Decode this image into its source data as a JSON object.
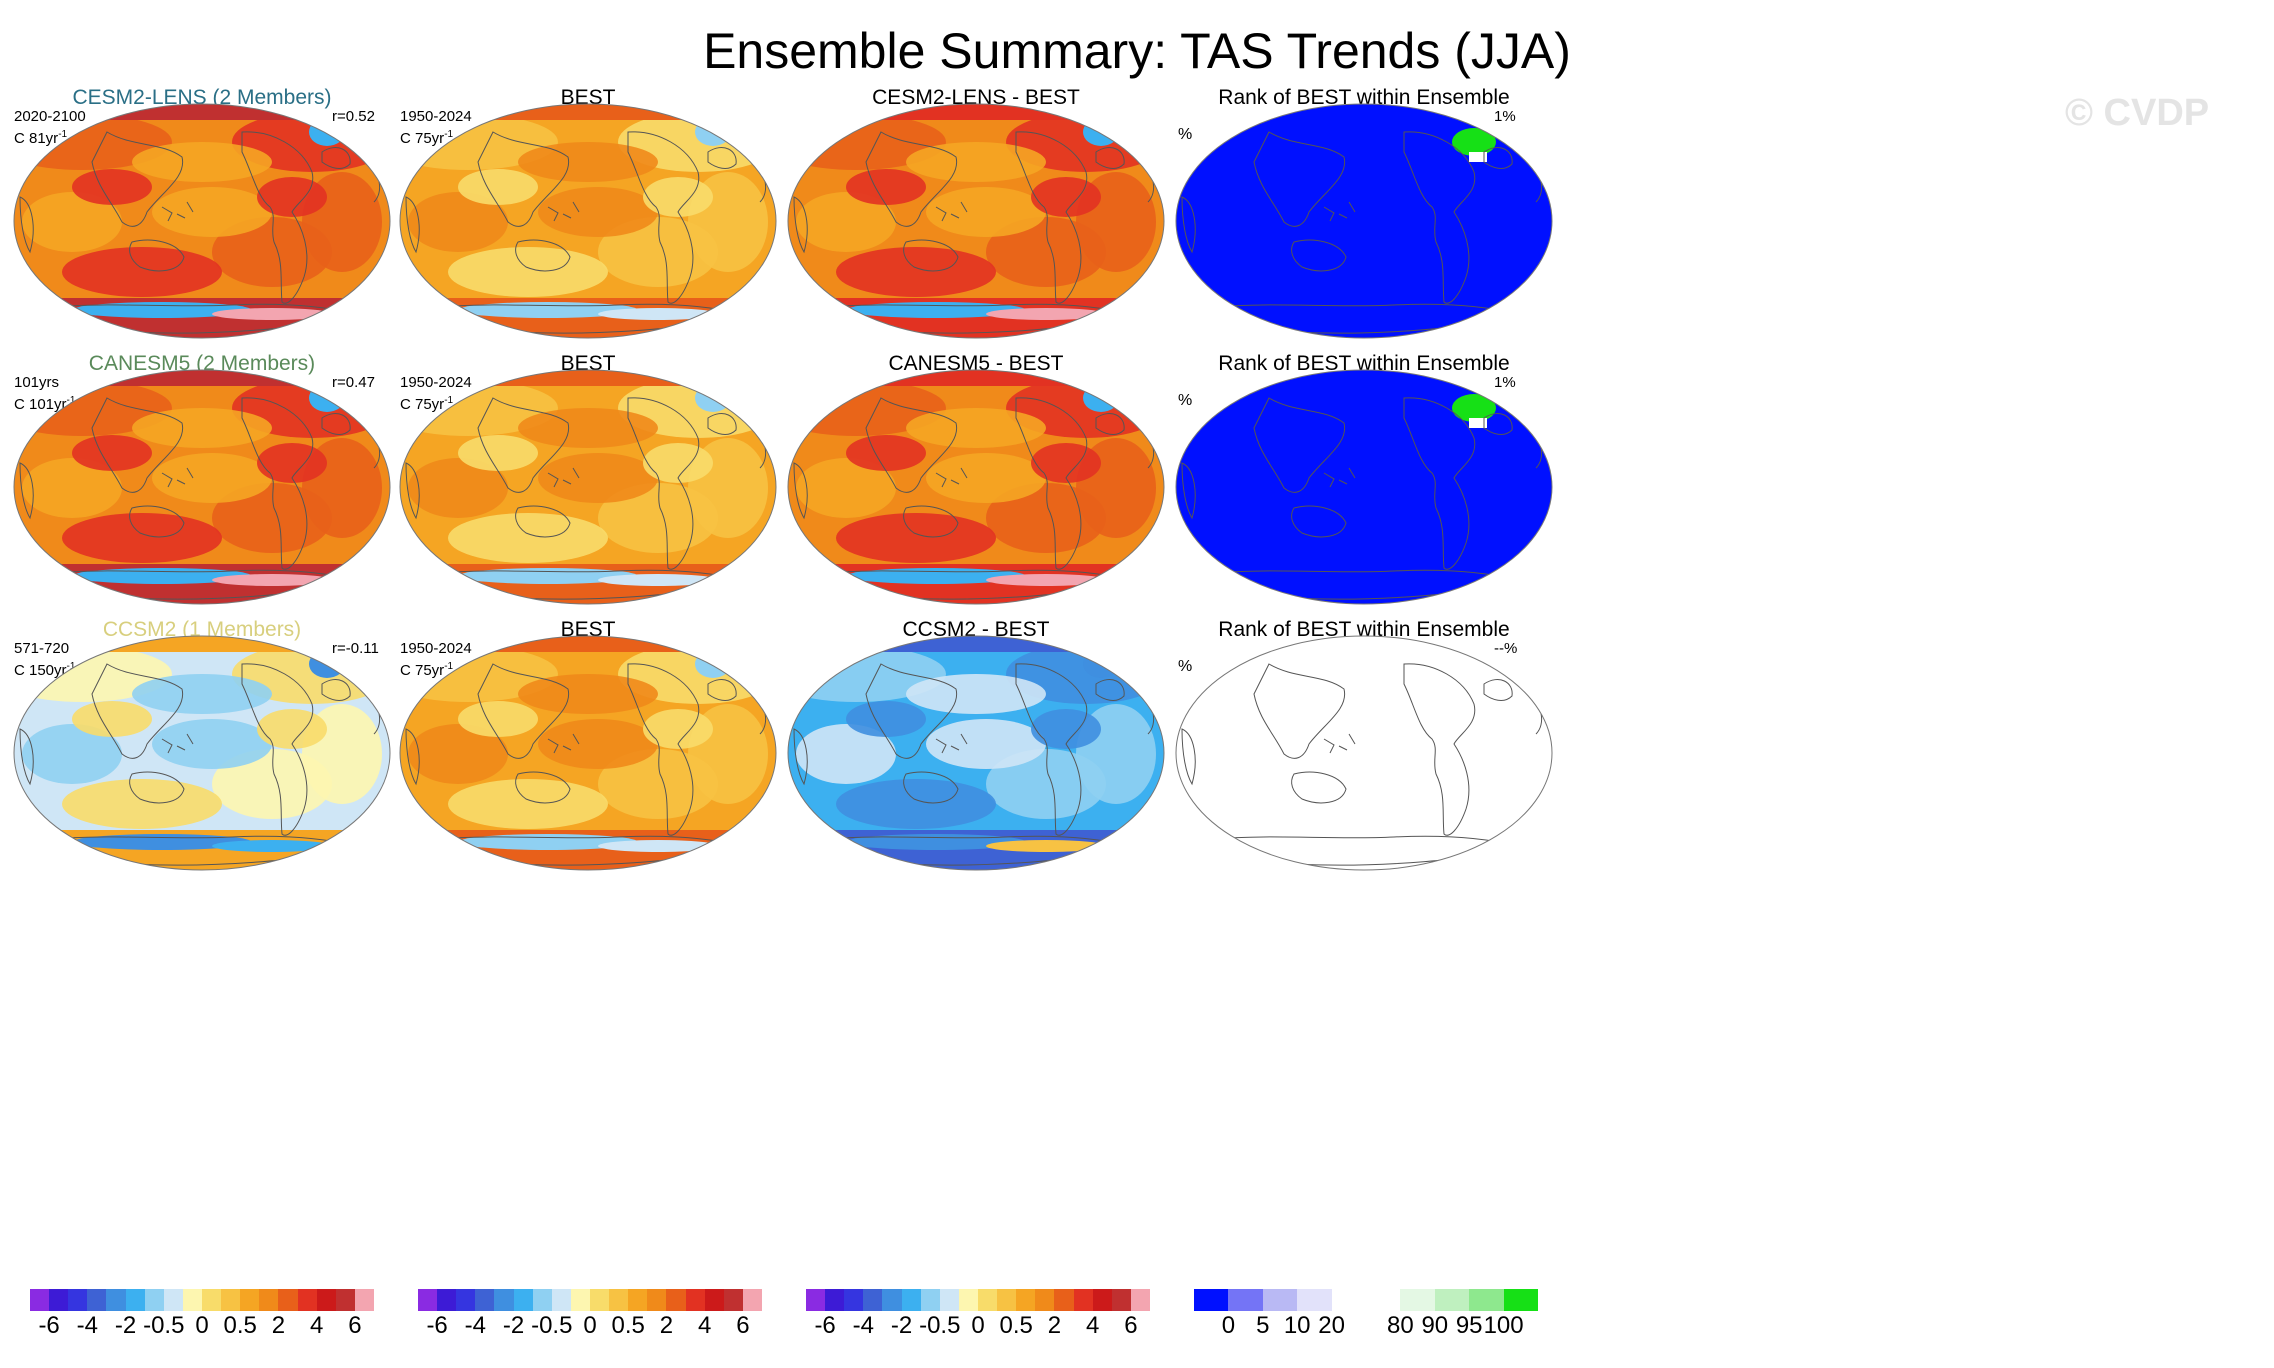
{
  "title": "Ensemble Summary: TAS Trends (JJA)",
  "watermark": "© CVDP",
  "colors": {
    "model_title_cesm2": "#2a6f86",
    "model_title_canesm5": "#5a8a5a",
    "model_title_ccsm2": "#d8cf7e",
    "ocean_rank": "#0010ff",
    "coast": "#555555"
  },
  "rows": [
    {
      "model": {
        "title": "CESM2-LENS (2 Members)",
        "left": "2020-2100",
        "left_units": "C 81yr",
        "sup": "-1",
        "right": "r=0.52",
        "theme": "hot"
      },
      "obs": {
        "title": "BEST",
        "left": "1950-2024",
        "left_units": "C 75yr",
        "sup": "-1",
        "theme": "obs"
      },
      "diff": {
        "title": "CESM2-LENS - BEST",
        "theme": "diffhot"
      },
      "rank": {
        "title": "Rank of BEST within Ensemble",
        "left": "%",
        "right": "1%",
        "theme": "rank"
      }
    },
    {
      "model": {
        "title": "CANESM5 (2 Members)",
        "left": "101yrs",
        "left_units": "C 101yr",
        "sup": "-1",
        "right": "r=0.47",
        "theme": "hot"
      },
      "obs": {
        "title": "BEST",
        "left": "1950-2024",
        "left_units": "C 75yr",
        "sup": "-1",
        "theme": "obs"
      },
      "diff": {
        "title": "CANESM5 - BEST",
        "theme": "diffhot"
      },
      "rank": {
        "title": "Rank of BEST within Ensemble",
        "left": "%",
        "right": "1%",
        "theme": "rank"
      }
    },
    {
      "model": {
        "title": "CCSM2 (1 Members)",
        "left": "571-720",
        "left_units": "C 150yr",
        "sup": "-1",
        "right": "r=-0.11",
        "theme": "cool"
      },
      "obs": {
        "title": "BEST",
        "left": "1950-2024",
        "left_units": "C 75yr",
        "sup": "-1",
        "theme": "obs"
      },
      "diff": {
        "title": "CCSM2 - BEST",
        "theme": "diffcool"
      },
      "rank": {
        "title": "Rank of BEST within Ensemble",
        "left": "%",
        "right": "--%",
        "theme": "blank"
      }
    }
  ],
  "colorbar_trend": {
    "colors": [
      "#8a2be2",
      "#3d1bd6",
      "#3535e0",
      "#3e62d4",
      "#3f8fe0",
      "#3cb0f0",
      "#8fd0f2",
      "#cfe6f6",
      "#fdf6b0",
      "#f8dc6a",
      "#f7c243",
      "#f5a523",
      "#f08a1a",
      "#e8601a",
      "#e23222",
      "#cc1a1a",
      "#c03030",
      "#f3a5b0"
    ],
    "labels": [
      "-6",
      "-4",
      "-2",
      "-0.5",
      "0",
      "0.5",
      "2",
      "4",
      "6"
    ]
  },
  "colorbar_rank": {
    "colors": [
      "#0010ff",
      "#7474f6",
      "#b9b9f4",
      "#e2e2fa",
      "#ffffff",
      "#ffffff",
      "#e4f8e4",
      "#bff0bf",
      "#8ee88e",
      "#16e016"
    ],
    "labels": [
      "0",
      "5",
      "10",
      "20",
      "80",
      "90",
      "95",
      "100"
    ]
  }
}
